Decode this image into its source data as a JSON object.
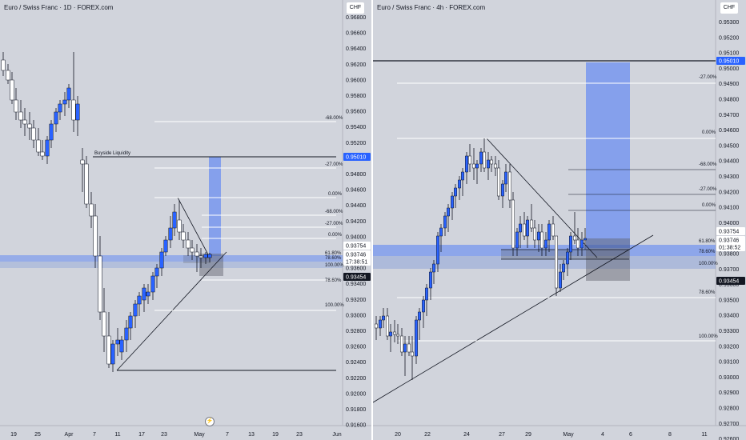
{
  "colors": {
    "bg": "#d1d4dc",
    "bull": "#2962ff",
    "bear": "#ffffff",
    "line": "#131722",
    "zone": "#8fa9d9",
    "grey": "#6b6f78"
  },
  "left": {
    "title": "Euro / Swiss Franc · 1D · FOREX.com",
    "currency": "CHF",
    "price_ticks": [
      "0.96800",
      "0.96600",
      "0.96400",
      "0.96200",
      "0.96000",
      "0.95800",
      "0.95600",
      "0.95400",
      "0.95200",
      "0.95000",
      "0.94800",
      "0.94600",
      "0.94400",
      "0.94200",
      "0.94000",
      "0.93800",
      "0.93600",
      "0.93400",
      "0.93200",
      "0.93000",
      "0.92800",
      "0.92600",
      "0.92400",
      "0.92200",
      "0.92000",
      "0.91800",
      "0.91600"
    ],
    "date_ticks": [
      "19",
      "25",
      "Apr",
      "7",
      "11",
      "17",
      "23",
      "May",
      "7",
      "13",
      "19",
      "23",
      "Jun"
    ],
    "price_label_current": "0.93746",
    "price_label_timer": "17:38:51",
    "price_label_upper": "0.93754",
    "price_label_lower": "0.93454",
    "price_label_target": "0.95010",
    "buyside_label": "Buyside Liquidity",
    "fib_levels": [
      "-68.00%",
      "-27.00%",
      "0.00%",
      "-68.00%",
      "-27.00%",
      "0.00%",
      "61.80%",
      "78.60%",
      "100.00%",
      "78.60%",
      "100.00%"
    ]
  },
  "right": {
    "title": "Euro / Swiss Franc · 4h · FOREX.com",
    "currency": "CHF",
    "price_ticks": [
      "0.95300",
      "0.95200",
      "0.95100",
      "0.95000",
      "0.94900",
      "0.94800",
      "0.94700",
      "0.94600",
      "0.94500",
      "0.94400",
      "0.94300",
      "0.94200",
      "0.94100",
      "0.94000",
      "0.93900",
      "0.93800",
      "0.93700",
      "0.93600",
      "0.93500",
      "0.93400",
      "0.93300",
      "0.93200",
      "0.93100",
      "0.93000",
      "0.92900",
      "0.92800",
      "0.92700",
      "0.92600",
      "0.92500"
    ],
    "date_ticks": [
      "20",
      "22",
      "24",
      "27",
      "29",
      "May",
      "4",
      "6",
      "8",
      "11"
    ],
    "price_label_current": "0.93746",
    "price_label_timer": "01:38:52",
    "price_label_upper": "0.93754",
    "price_label_lower": "0.93454",
    "price_label_target": "0.95010",
    "fib_levels": [
      "-27.00%",
      "0.00%",
      "-68.00%",
      "-27.00%",
      "0.00%",
      "61.80%",
      "78.60%",
      "100.00%",
      "78.60%",
      "100.00%"
    ]
  }
}
